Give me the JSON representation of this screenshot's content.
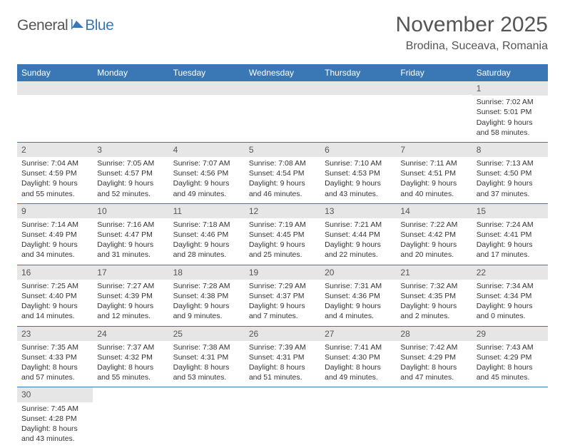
{
  "logo": {
    "general": "General",
    "blue": "Blue"
  },
  "title": "November 2025",
  "location": "Brodina, Suceava, Romania",
  "colors": {
    "header_bg": "#3a78b5",
    "daynum_bg": "#e6e6e6",
    "text": "#333333",
    "muted": "#555555"
  },
  "day_headers": [
    "Sunday",
    "Monday",
    "Tuesday",
    "Wednesday",
    "Thursday",
    "Friday",
    "Saturday"
  ],
  "weeks": [
    [
      {
        "empty": true
      },
      {
        "empty": true
      },
      {
        "empty": true
      },
      {
        "empty": true
      },
      {
        "empty": true
      },
      {
        "empty": true
      },
      {
        "num": "1",
        "sunrise": "Sunrise: 7:02 AM",
        "sunset": "Sunset: 5:01 PM",
        "daylight1": "Daylight: 9 hours",
        "daylight2": "and 58 minutes."
      }
    ],
    [
      {
        "num": "2",
        "sunrise": "Sunrise: 7:04 AM",
        "sunset": "Sunset: 4:59 PM",
        "daylight1": "Daylight: 9 hours",
        "daylight2": "and 55 minutes."
      },
      {
        "num": "3",
        "sunrise": "Sunrise: 7:05 AM",
        "sunset": "Sunset: 4:57 PM",
        "daylight1": "Daylight: 9 hours",
        "daylight2": "and 52 minutes."
      },
      {
        "num": "4",
        "sunrise": "Sunrise: 7:07 AM",
        "sunset": "Sunset: 4:56 PM",
        "daylight1": "Daylight: 9 hours",
        "daylight2": "and 49 minutes."
      },
      {
        "num": "5",
        "sunrise": "Sunrise: 7:08 AM",
        "sunset": "Sunset: 4:54 PM",
        "daylight1": "Daylight: 9 hours",
        "daylight2": "and 46 minutes."
      },
      {
        "num": "6",
        "sunrise": "Sunrise: 7:10 AM",
        "sunset": "Sunset: 4:53 PM",
        "daylight1": "Daylight: 9 hours",
        "daylight2": "and 43 minutes."
      },
      {
        "num": "7",
        "sunrise": "Sunrise: 7:11 AM",
        "sunset": "Sunset: 4:51 PM",
        "daylight1": "Daylight: 9 hours",
        "daylight2": "and 40 minutes."
      },
      {
        "num": "8",
        "sunrise": "Sunrise: 7:13 AM",
        "sunset": "Sunset: 4:50 PM",
        "daylight1": "Daylight: 9 hours",
        "daylight2": "and 37 minutes."
      }
    ],
    [
      {
        "num": "9",
        "sunrise": "Sunrise: 7:14 AM",
        "sunset": "Sunset: 4:49 PM",
        "daylight1": "Daylight: 9 hours",
        "daylight2": "and 34 minutes."
      },
      {
        "num": "10",
        "sunrise": "Sunrise: 7:16 AM",
        "sunset": "Sunset: 4:47 PM",
        "daylight1": "Daylight: 9 hours",
        "daylight2": "and 31 minutes."
      },
      {
        "num": "11",
        "sunrise": "Sunrise: 7:18 AM",
        "sunset": "Sunset: 4:46 PM",
        "daylight1": "Daylight: 9 hours",
        "daylight2": "and 28 minutes."
      },
      {
        "num": "12",
        "sunrise": "Sunrise: 7:19 AM",
        "sunset": "Sunset: 4:45 PM",
        "daylight1": "Daylight: 9 hours",
        "daylight2": "and 25 minutes."
      },
      {
        "num": "13",
        "sunrise": "Sunrise: 7:21 AM",
        "sunset": "Sunset: 4:44 PM",
        "daylight1": "Daylight: 9 hours",
        "daylight2": "and 22 minutes."
      },
      {
        "num": "14",
        "sunrise": "Sunrise: 7:22 AM",
        "sunset": "Sunset: 4:42 PM",
        "daylight1": "Daylight: 9 hours",
        "daylight2": "and 20 minutes."
      },
      {
        "num": "15",
        "sunrise": "Sunrise: 7:24 AM",
        "sunset": "Sunset: 4:41 PM",
        "daylight1": "Daylight: 9 hours",
        "daylight2": "and 17 minutes."
      }
    ],
    [
      {
        "num": "16",
        "sunrise": "Sunrise: 7:25 AM",
        "sunset": "Sunset: 4:40 PM",
        "daylight1": "Daylight: 9 hours",
        "daylight2": "and 14 minutes."
      },
      {
        "num": "17",
        "sunrise": "Sunrise: 7:27 AM",
        "sunset": "Sunset: 4:39 PM",
        "daylight1": "Daylight: 9 hours",
        "daylight2": "and 12 minutes."
      },
      {
        "num": "18",
        "sunrise": "Sunrise: 7:28 AM",
        "sunset": "Sunset: 4:38 PM",
        "daylight1": "Daylight: 9 hours",
        "daylight2": "and 9 minutes."
      },
      {
        "num": "19",
        "sunrise": "Sunrise: 7:29 AM",
        "sunset": "Sunset: 4:37 PM",
        "daylight1": "Daylight: 9 hours",
        "daylight2": "and 7 minutes."
      },
      {
        "num": "20",
        "sunrise": "Sunrise: 7:31 AM",
        "sunset": "Sunset: 4:36 PM",
        "daylight1": "Daylight: 9 hours",
        "daylight2": "and 4 minutes."
      },
      {
        "num": "21",
        "sunrise": "Sunrise: 7:32 AM",
        "sunset": "Sunset: 4:35 PM",
        "daylight1": "Daylight: 9 hours",
        "daylight2": "and 2 minutes."
      },
      {
        "num": "22",
        "sunrise": "Sunrise: 7:34 AM",
        "sunset": "Sunset: 4:34 PM",
        "daylight1": "Daylight: 9 hours",
        "daylight2": "and 0 minutes."
      }
    ],
    [
      {
        "num": "23",
        "sunrise": "Sunrise: 7:35 AM",
        "sunset": "Sunset: 4:33 PM",
        "daylight1": "Daylight: 8 hours",
        "daylight2": "and 57 minutes."
      },
      {
        "num": "24",
        "sunrise": "Sunrise: 7:37 AM",
        "sunset": "Sunset: 4:32 PM",
        "daylight1": "Daylight: 8 hours",
        "daylight2": "and 55 minutes."
      },
      {
        "num": "25",
        "sunrise": "Sunrise: 7:38 AM",
        "sunset": "Sunset: 4:31 PM",
        "daylight1": "Daylight: 8 hours",
        "daylight2": "and 53 minutes."
      },
      {
        "num": "26",
        "sunrise": "Sunrise: 7:39 AM",
        "sunset": "Sunset: 4:31 PM",
        "daylight1": "Daylight: 8 hours",
        "daylight2": "and 51 minutes."
      },
      {
        "num": "27",
        "sunrise": "Sunrise: 7:41 AM",
        "sunset": "Sunset: 4:30 PM",
        "daylight1": "Daylight: 8 hours",
        "daylight2": "and 49 minutes."
      },
      {
        "num": "28",
        "sunrise": "Sunrise: 7:42 AM",
        "sunset": "Sunset: 4:29 PM",
        "daylight1": "Daylight: 8 hours",
        "daylight2": "and 47 minutes."
      },
      {
        "num": "29",
        "sunrise": "Sunrise: 7:43 AM",
        "sunset": "Sunset: 4:29 PM",
        "daylight1": "Daylight: 8 hours",
        "daylight2": "and 45 minutes."
      }
    ],
    [
      {
        "num": "30",
        "sunrise": "Sunrise: 7:45 AM",
        "sunset": "Sunset: 4:28 PM",
        "daylight1": "Daylight: 8 hours",
        "daylight2": "and 43 minutes."
      },
      {
        "blank": true
      },
      {
        "blank": true
      },
      {
        "blank": true
      },
      {
        "blank": true
      },
      {
        "blank": true
      },
      {
        "blank": true
      }
    ]
  ]
}
